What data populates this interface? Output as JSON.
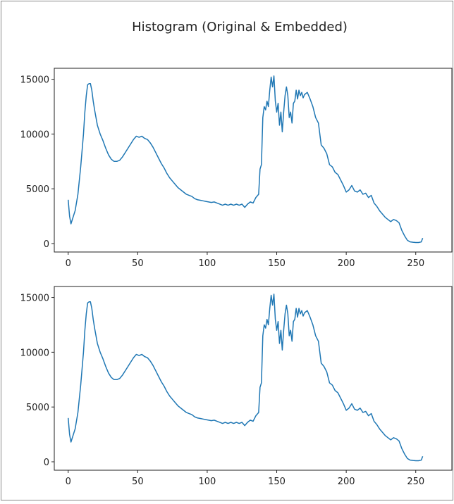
{
  "title": "Histogram (Original & Embedded)",
  "chart_data": [
    {
      "type": "line",
      "color": "#1f77b4",
      "xlim": [
        -10,
        276
      ],
      "ylim": [
        -770,
        16000
      ],
      "xticks": [
        0,
        50,
        100,
        150,
        200,
        250
      ],
      "yticks": [
        0,
        5000,
        10000,
        15000
      ],
      "x": [
        0,
        1,
        2,
        3,
        5,
        7,
        9,
        11,
        12,
        13,
        14,
        15,
        16,
        17,
        18,
        19,
        20,
        21,
        23,
        25,
        27,
        29,
        31,
        33,
        35,
        37,
        39,
        41,
        43,
        45,
        47,
        49,
        51,
        53,
        55,
        57,
        59,
        61,
        63,
        65,
        67,
        69,
        71,
        73,
        75,
        77,
        79,
        81,
        83,
        85,
        87,
        89,
        91,
        93,
        95,
        97,
        99,
        101,
        103,
        105,
        107,
        109,
        111,
        113,
        115,
        117,
        119,
        121,
        123,
        125,
        127,
        129,
        131,
        133,
        135,
        137,
        138,
        139,
        140,
        141,
        142,
        143,
        144,
        145,
        146,
        147,
        148,
        149,
        150,
        151,
        152,
        153,
        154,
        155,
        156,
        157,
        158,
        159,
        160,
        161,
        162,
        163,
        164,
        165,
        166,
        167,
        168,
        169,
        170,
        172,
        174,
        176,
        178,
        180,
        182,
        184,
        186,
        188,
        190,
        192,
        194,
        196,
        198,
        200,
        202,
        204,
        206,
        208,
        210,
        212,
        214,
        216,
        218,
        220,
        222,
        224,
        226,
        228,
        230,
        232,
        234,
        236,
        238,
        240,
        242,
        244,
        246,
        248,
        250,
        252,
        254,
        255
      ],
      "values": [
        4000,
        2500,
        1800,
        2200,
        3000,
        4500,
        7000,
        10000,
        12000,
        13500,
        14500,
        14600,
        14600,
        14000,
        13000,
        12200,
        11500,
        10800,
        10000,
        9400,
        8700,
        8100,
        7700,
        7500,
        7500,
        7600,
        7900,
        8300,
        8700,
        9100,
        9500,
        9800,
        9700,
        9800,
        9600,
        9500,
        9200,
        8800,
        8300,
        7800,
        7300,
        6900,
        6400,
        6000,
        5700,
        5400,
        5100,
        4900,
        4700,
        4500,
        4400,
        4300,
        4100,
        4000,
        3950,
        3900,
        3850,
        3800,
        3750,
        3800,
        3700,
        3600,
        3500,
        3600,
        3500,
        3600,
        3500,
        3600,
        3500,
        3600,
        3300,
        3600,
        3800,
        3700,
        4200,
        4500,
        6800,
        7200,
        11500,
        12500,
        12200,
        13000,
        12500,
        14000,
        15200,
        14300,
        15300,
        13000,
        12000,
        12800,
        10800,
        12000,
        10200,
        12000,
        13500,
        14300,
        13500,
        11500,
        12000,
        11000,
        12800,
        13000,
        14000,
        13200,
        14000,
        13500,
        13800,
        13300,
        13600,
        13800,
        13200,
        12500,
        11500,
        11000,
        9000,
        8700,
        8200,
        7200,
        7000,
        6500,
        6300,
        5800,
        5300,
        4700,
        4900,
        5300,
        4800,
        4700,
        4900,
        4500,
        4600,
        4200,
        4400,
        3700,
        3400,
        3000,
        2700,
        2400,
        2200,
        2000,
        2200,
        2100,
        1900,
        1200,
        700,
        300,
        150,
        120,
        100,
        100,
        150,
        500
      ]
    },
    {
      "type": "line",
      "color": "#1f77b4",
      "xlim": [
        -10,
        276
      ],
      "ylim": [
        -770,
        16000
      ],
      "xticks": [
        0,
        50,
        100,
        150,
        200,
        250
      ],
      "yticks": [
        0,
        5000,
        10000,
        15000
      ],
      "x": [
        0,
        1,
        2,
        3,
        5,
        7,
        9,
        11,
        12,
        13,
        14,
        15,
        16,
        17,
        18,
        19,
        20,
        21,
        23,
        25,
        27,
        29,
        31,
        33,
        35,
        37,
        39,
        41,
        43,
        45,
        47,
        49,
        51,
        53,
        55,
        57,
        59,
        61,
        63,
        65,
        67,
        69,
        71,
        73,
        75,
        77,
        79,
        81,
        83,
        85,
        87,
        89,
        91,
        93,
        95,
        97,
        99,
        101,
        103,
        105,
        107,
        109,
        111,
        113,
        115,
        117,
        119,
        121,
        123,
        125,
        127,
        129,
        131,
        133,
        135,
        137,
        138,
        139,
        140,
        141,
        142,
        143,
        144,
        145,
        146,
        147,
        148,
        149,
        150,
        151,
        152,
        153,
        154,
        155,
        156,
        157,
        158,
        159,
        160,
        161,
        162,
        163,
        164,
        165,
        166,
        167,
        168,
        169,
        170,
        172,
        174,
        176,
        178,
        180,
        182,
        184,
        186,
        188,
        190,
        192,
        194,
        196,
        198,
        200,
        202,
        204,
        206,
        208,
        210,
        212,
        214,
        216,
        218,
        220,
        222,
        224,
        226,
        228,
        230,
        232,
        234,
        236,
        238,
        240,
        242,
        244,
        246,
        248,
        250,
        252,
        254,
        255
      ],
      "values": [
        4000,
        2500,
        1800,
        2200,
        3000,
        4500,
        7000,
        10000,
        12000,
        13500,
        14500,
        14600,
        14600,
        14000,
        13000,
        12200,
        11500,
        10800,
        10000,
        9400,
        8700,
        8100,
        7700,
        7500,
        7500,
        7600,
        7900,
        8300,
        8700,
        9100,
        9500,
        9800,
        9700,
        9800,
        9600,
        9500,
        9200,
        8800,
        8300,
        7800,
        7300,
        6900,
        6400,
        6000,
        5700,
        5400,
        5100,
        4900,
        4700,
        4500,
        4400,
        4300,
        4100,
        4000,
        3950,
        3900,
        3850,
        3800,
        3750,
        3800,
        3700,
        3600,
        3500,
        3600,
        3500,
        3600,
        3500,
        3600,
        3500,
        3600,
        3300,
        3600,
        3800,
        3700,
        4200,
        4500,
        6800,
        7200,
        11500,
        12500,
        12200,
        13000,
        12500,
        14000,
        15200,
        14300,
        15300,
        13000,
        12000,
        12800,
        10800,
        12000,
        10200,
        12000,
        13500,
        14300,
        13500,
        11500,
        12000,
        11000,
        12800,
        13000,
        14000,
        13200,
        14000,
        13500,
        13800,
        13300,
        13600,
        13800,
        13200,
        12500,
        11500,
        11000,
        9000,
        8700,
        8200,
        7200,
        7000,
        6500,
        6300,
        5800,
        5300,
        4700,
        4900,
        5300,
        4800,
        4700,
        4900,
        4500,
        4600,
        4200,
        4400,
        3700,
        3400,
        3000,
        2700,
        2400,
        2200,
        2000,
        2200,
        2100,
        1900,
        1200,
        700,
        300,
        150,
        120,
        100,
        100,
        150,
        500
      ]
    }
  ]
}
